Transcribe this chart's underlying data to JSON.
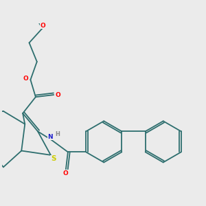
{
  "bg_color": "#ebebeb",
  "bond_color": "#2d6e6e",
  "lw": 1.3,
  "atom_colors": {
    "O": "#ff0000",
    "N": "#2020cc",
    "S": "#cccc00",
    "H": "#888888"
  },
  "font_size": 6.5
}
